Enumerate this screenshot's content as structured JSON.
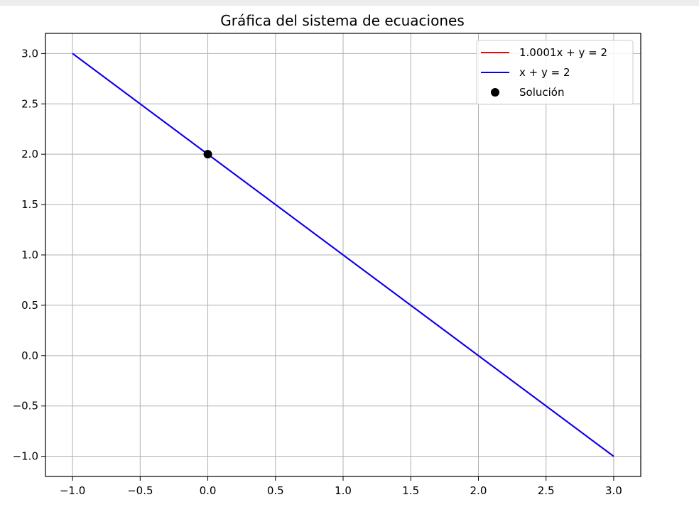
{
  "chart_data": {
    "type": "line",
    "title": "Gráfica del sistema de ecuaciones",
    "xlabel": "",
    "ylabel": "",
    "xlim": [
      -1.2,
      3.2
    ],
    "ylim": [
      -1.2,
      3.2
    ],
    "xticks": [
      -1.0,
      -0.5,
      0.0,
      0.5,
      1.0,
      1.5,
      2.0,
      2.5,
      3.0
    ],
    "yticks": [
      -1.0,
      -0.5,
      0.0,
      0.5,
      1.0,
      1.5,
      2.0,
      2.5,
      3.0
    ],
    "xtick_labels": [
      "−1.0",
      "−0.5",
      "0.0",
      "0.5",
      "1.0",
      "1.5",
      "2.0",
      "2.5",
      "3.0"
    ],
    "ytick_labels": [
      "−1.0",
      "−0.5",
      "0.0",
      "0.5",
      "1.0",
      "1.5",
      "2.0",
      "2.5",
      "3.0"
    ],
    "grid": true,
    "legend_position": "top-right",
    "series": [
      {
        "name": "1.0001x + y = 2",
        "color": "#ff0000",
        "x": [
          -1.0,
          3.0
        ],
        "y": [
          3.0001,
          -1.0003
        ]
      },
      {
        "name": "x + y = 2",
        "color": "#0000ff",
        "x": [
          -1.0,
          3.0
        ],
        "y": [
          3.0,
          -1.0
        ]
      }
    ],
    "points": [
      {
        "name": "Solución",
        "color": "#000000",
        "x": 0.0,
        "y": 2.0
      }
    ]
  }
}
